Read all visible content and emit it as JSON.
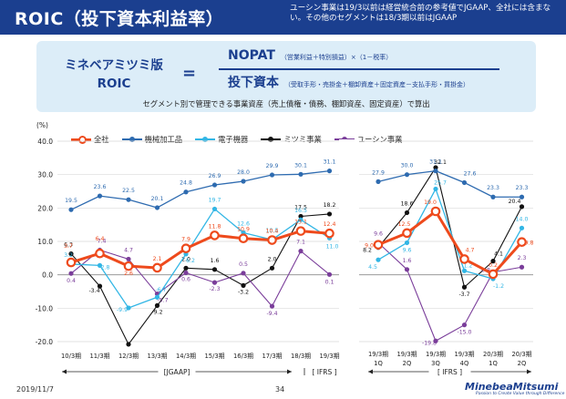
{
  "header": {
    "title": "ROIC（投下資本利益率）",
    "note": "ユーシン事業は19/3以前は経営統合前の参考値でJGAAP、全社には含まない。その他のセグメントは18/3期以前はJGAAP"
  },
  "formula": {
    "left_line1": "ミネベアミツミ版",
    "left_line2": "ROIC",
    "equals": "=",
    "numerator": "NOPAT",
    "numerator_detail": "（営業利益＋特別損益）×（1－税率）",
    "denominator": "投下資本",
    "denominator_detail": "（受取手形・売掛金＋棚卸資産＋固定資産－支払手形・買掛金）",
    "subnote": "セグメント別で管理できる事業資産（売上債権・債務、棚卸資産、固定資産）で算出"
  },
  "footer": {
    "date": "2019/11/7",
    "page": "34",
    "logo": "MinebeaMitsumi",
    "logo_sub": "Passion to Create Value through Difference"
  },
  "colors": {
    "brand": "#1b3f8f",
    "total": "#ee4a1c",
    "machinery": "#2e6bb0",
    "electronics": "#32b6e5",
    "mitsumi": "#111111",
    "u_shin": "#7a3d9a"
  },
  "chart_data": {
    "type": "line",
    "unit_label": "(%)",
    "ylim": [
      -20,
      40
    ],
    "yticks": [
      -20,
      -10,
      0,
      10,
      20,
      30,
      40
    ],
    "ytick_labels": [
      "-20.0",
      "-10.0",
      "0.0",
      "10.0",
      "20.0",
      "30.0",
      "40.0"
    ],
    "grid": true,
    "left_panel": {
      "categories": [
        "10/3期",
        "11/3期",
        "12/3期",
        "13/3期",
        "14/3期",
        "15/3期",
        "16/3期",
        "17/3期",
        "18/3期",
        "19/3期"
      ],
      "period_labels": [
        {
          "text": "[JGAAP]",
          "span": "10/3期-18/3期"
        },
        {
          "text": "[ IFRS ]",
          "span": "19/3期"
        }
      ]
    },
    "right_panel": {
      "categories_line1": [
        "19/3期",
        "19/3期",
        "19/3期",
        "19/3期",
        "20/3期",
        "20/3期"
      ],
      "categories_line2": [
        "1Q",
        "2Q",
        "3Q",
        "4Q",
        "1Q",
        "2Q"
      ],
      "period_labels": [
        {
          "text": "[ IFRS ]",
          "span": "19/3期1Q-20/3期2Q"
        }
      ]
    },
    "series": [
      {
        "key": "total",
        "name": "全社",
        "left": [
          3.7,
          6.4,
          2.6,
          2.1,
          7.9,
          11.8,
          10.9,
          10.4,
          13.1,
          12.4
        ],
        "right": [
          9.0,
          12.5,
          19.0,
          4.7,
          0.2,
          9.8
        ],
        "left_labels": [
          "3.7",
          "6.4",
          "2.6",
          "2.1",
          "7.9",
          "11.8",
          "10.9",
          "10.4",
          "13.1",
          "12.4"
        ],
        "right_labels": [
          "9.0",
          "12.5",
          "19.0",
          "4.7",
          "0.2",
          "9.8"
        ]
      },
      {
        "key": "machinery",
        "name": "機械加工品",
        "left": [
          19.5,
          23.6,
          22.5,
          20.1,
          24.8,
          26.9,
          28.0,
          29.9,
          30.1,
          31.1
        ],
        "right": [
          27.9,
          30.0,
          31.1,
          27.6,
          23.3,
          23.3
        ],
        "left_labels": [
          "19.5",
          "23.6",
          "22.5",
          "20.1",
          "24.8",
          "26.9",
          "28.0",
          "29.9",
          "30.1",
          "31.1"
        ],
        "right_labels": [
          "27.9",
          "30.0",
          "31.1",
          "27.6",
          "23.3",
          "23.3"
        ]
      },
      {
        "key": "electronics",
        "name": "電子機器",
        "left": [
          3.2,
          2.8,
          -9.9,
          -6.7,
          6.2,
          19.7,
          12.6,
          10.5,
          16.5,
          11.0
        ],
        "right": [
          4.5,
          9.6,
          25.7,
          1.2,
          -1.2,
          14.0
        ],
        "left_labels": [
          "3.2",
          "2.8",
          "-9.9",
          "-6.7",
          "6.2",
          "19.7",
          "12.6",
          "10.5",
          "16.5",
          "11.0"
        ],
        "right_labels": [
          "4.5",
          "9.6",
          "25.7",
          "1.2",
          "-1.2",
          "14.0"
        ]
      },
      {
        "key": "mitsumi",
        "name": "ミツミ事業",
        "left": [
          6.3,
          -3.4,
          -20.8,
          -9.2,
          2.0,
          1.6,
          -3.2,
          2.0,
          17.5,
          18.2
        ],
        "right": [
          8.2,
          18.6,
          32.1,
          -3.7,
          4.1,
          20.4
        ],
        "left_labels": [
          "6.3",
          "-3.4",
          "",
          "-9.2",
          "2.0",
          "1.6",
          "-3.2",
          "2.0",
          "17.5",
          "18.2"
        ],
        "right_labels": [
          "8.2",
          "18.6",
          "32.1",
          "-3.7",
          "4.1",
          "20.4"
        ]
      },
      {
        "key": "u_shin",
        "name": "ユーシン事業",
        "left": [
          0.4,
          7.4,
          4.7,
          -5.7,
          0.6,
          -2.3,
          0.5,
          -9.4,
          7.1,
          0.1
        ],
        "right": [
          9.6,
          1.6,
          -19.8,
          -15.0,
          0.8,
          2.3
        ],
        "left_labels": [
          "0.4",
          "7.4",
          "4.7",
          "-5.7",
          "0.6",
          "-2.3",
          "0.5",
          "-9.4",
          "7.1",
          "0.1"
        ],
        "right_labels": [
          "9.6",
          "1.6",
          "-19.8",
          "-15.0",
          "0.8",
          "2.3"
        ]
      }
    ]
  }
}
